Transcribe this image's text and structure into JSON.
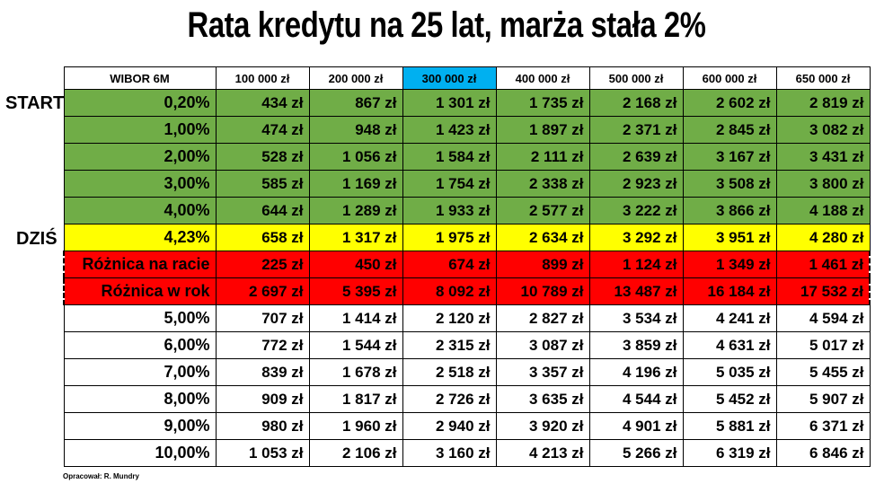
{
  "title": "Rata kredytu na 25 lat, marża stała 2%",
  "side_labels": {
    "start": "START",
    "dzis": "DZIŚ"
  },
  "colors": {
    "green": "#70ad47",
    "yellow": "#ffff00",
    "red": "#ff0000",
    "highlight": "#00b0f0"
  },
  "table": {
    "header": [
      "WIBOR 6M",
      "100 000 zł",
      "200 000 zł",
      "300 000 zł",
      "400 000 zł",
      "500 000 zł",
      "600 000 zł",
      "650 000 zł"
    ],
    "highlighted_column": "300 000 zł",
    "rows": [
      {
        "style": "green",
        "cells": [
          "0,20%",
          "434 zł",
          "867 zł",
          "1 301 zł",
          "1 735 zł",
          "2 168 zł",
          "2 602 zł",
          "2 819 zł"
        ]
      },
      {
        "style": "green",
        "cells": [
          "1,00%",
          "474 zł",
          "948 zł",
          "1 423 zł",
          "1 897 zł",
          "2 371 zł",
          "2 845 zł",
          "3 082 zł"
        ]
      },
      {
        "style": "green",
        "cells": [
          "2,00%",
          "528 zł",
          "1 056 zł",
          "1 584 zł",
          "2 111 zł",
          "2 639 zł",
          "3 167 zł",
          "3 431 zł"
        ]
      },
      {
        "style": "green",
        "cells": [
          "3,00%",
          "585 zł",
          "1 169 zł",
          "1 754 zł",
          "2 338 zł",
          "2 923 zł",
          "3 508 zł",
          "3 800 zł"
        ]
      },
      {
        "style": "green",
        "cells": [
          "4,00%",
          "644 zł",
          "1 289 zł",
          "1 933 zł",
          "2 577 zł",
          "3 222 zł",
          "3 866 zł",
          "4 188 zł"
        ]
      },
      {
        "style": "yellow",
        "cells": [
          "4,23%",
          "658 zł",
          "1 317 zł",
          "1 975 zł",
          "2 634 zł",
          "3 292 zł",
          "3 951 zł",
          "4 280 zł"
        ]
      },
      {
        "style": "red",
        "cells": [
          "Różnica na racie",
          "225 zł",
          "450 zł",
          "674 zł",
          "899 zł",
          "1 124 zł",
          "1 349 zł",
          "1 461 zł"
        ]
      },
      {
        "style": "red",
        "cells": [
          "Różnica w rok",
          "2 697 zł",
          "5 395 zł",
          "8 092 zł",
          "10 789 zł",
          "13 487 zł",
          "16 184 zł",
          "17 532 zł"
        ]
      },
      {
        "style": "white",
        "cells": [
          "5,00%",
          "707 zł",
          "1 414 zł",
          "2 120 zł",
          "2 827 zł",
          "3 534 zł",
          "4 241 zł",
          "4 594 zł"
        ]
      },
      {
        "style": "white",
        "cells": [
          "6,00%",
          "772 zł",
          "1 544 zł",
          "2 315 zł",
          "3 087 zł",
          "3 859 zł",
          "4 631 zł",
          "5 017 zł"
        ]
      },
      {
        "style": "white",
        "cells": [
          "7,00%",
          "839 zł",
          "1 678 zł",
          "2 518 zł",
          "3 357 zł",
          "4 196 zł",
          "5 035 zł",
          "5 455 zł"
        ]
      },
      {
        "style": "white",
        "cells": [
          "8,00%",
          "909 zł",
          "1 817 zł",
          "2 726 zł",
          "3 635 zł",
          "4 544 zł",
          "5 452 zł",
          "5 907 zł"
        ]
      },
      {
        "style": "white",
        "cells": [
          "9,00%",
          "980 zł",
          "1 960 zł",
          "2 940 zł",
          "3 920 zł",
          "4 901 zł",
          "5 881 zł",
          "6 371 zł"
        ]
      },
      {
        "style": "white",
        "cells": [
          "10,00%",
          "1 053 zł",
          "2 106 zł",
          "3 160 zł",
          "4 213 zł",
          "5 266 zł",
          "6 319 zł",
          "6 846 zł"
        ]
      }
    ]
  },
  "footer": "Opracował: R. Mundry"
}
